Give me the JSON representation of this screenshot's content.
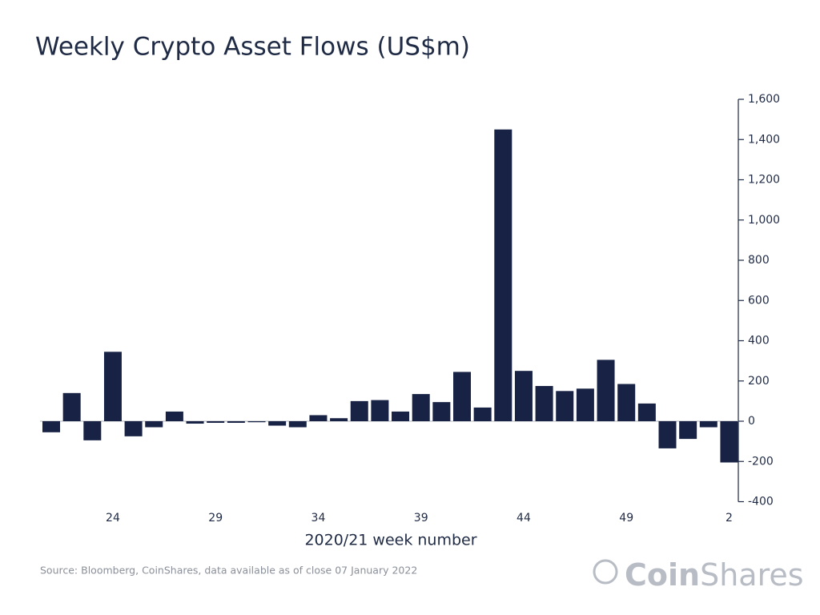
{
  "chart_data": {
    "type": "bar",
    "title": "Weekly Crypto Asset Flows (US$m)",
    "xlabel": "2020/21 week number",
    "source": "Source: Bloomberg, CoinShares, data available as of close 07 January 2022",
    "logo": {
      "part1": "Coin",
      "part2": "Shares"
    },
    "categories": [
      null,
      null,
      null,
      "24",
      null,
      null,
      null,
      null,
      "29",
      null,
      null,
      null,
      null,
      "34",
      null,
      null,
      null,
      null,
      "39",
      null,
      null,
      null,
      null,
      "44",
      null,
      null,
      null,
      null,
      "49",
      null,
      null,
      null,
      null,
      "2"
    ],
    "values": [
      -55,
      140,
      -95,
      345,
      -75,
      -30,
      48,
      -12,
      -8,
      -8,
      -5,
      -22,
      -30,
      30,
      15,
      100,
      105,
      48,
      135,
      95,
      245,
      68,
      1450,
      250,
      175,
      150,
      162,
      305,
      185,
      88,
      -135,
      -88,
      -30,
      -205
    ],
    "color": "#172244",
    "ylim": [
      -400,
      1600
    ],
    "yticks": [
      -400,
      -200,
      0,
      200,
      400,
      600,
      800,
      {
        "value": 1000,
        "label": "1,000"
      },
      {
        "value": 1200,
        "label": "1,200"
      },
      {
        "value": 1400,
        "label": "1,400"
      },
      {
        "value": 1600,
        "label": "1,600"
      }
    ],
    "y_axis_side": "right"
  }
}
